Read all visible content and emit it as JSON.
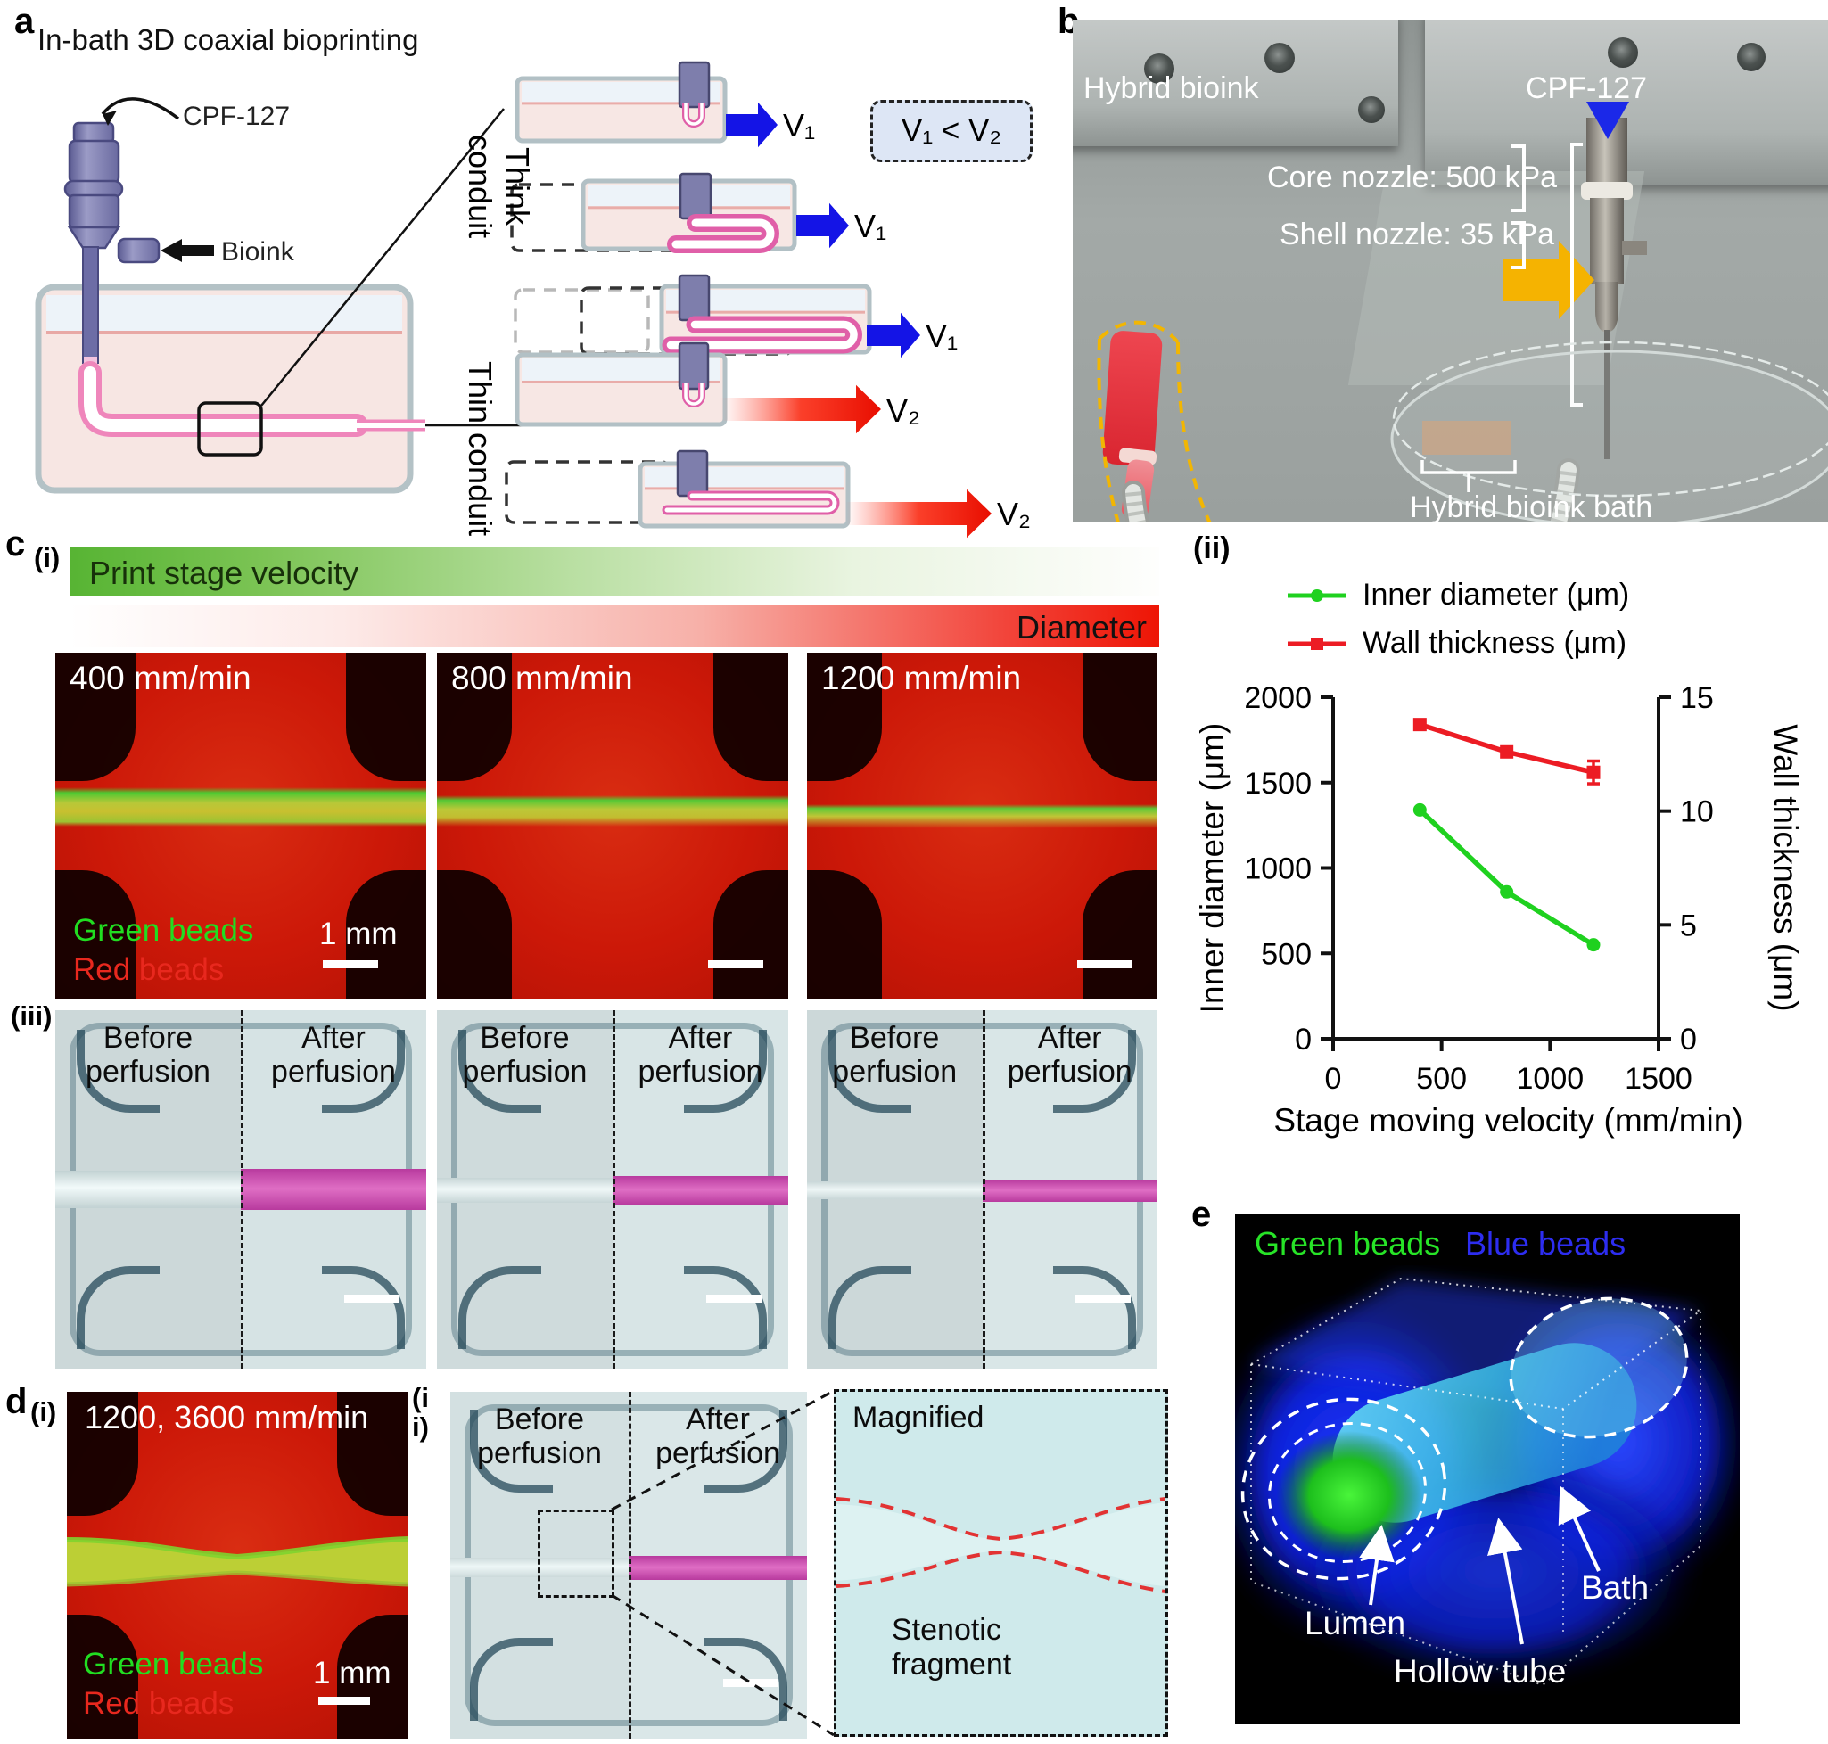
{
  "figure": {
    "a": {
      "label": "a",
      "title": "In-bath 3D coaxial bioprinting",
      "cpf": "CPF-127",
      "bioink": "Bioink",
      "thick_conduit": "Think conduit",
      "thin_conduit": "Thin conduit",
      "v1": "V₁",
      "v2": "V₂",
      "note": "V₁ < V₂"
    },
    "b": {
      "label": "b",
      "hybrid": "Hybrid bioink",
      "cpf": "CPF-127",
      "core": "Core nozzle: 500 kPa",
      "shell": "Shell nozzle: 35 kPa",
      "bath": "Hybrid bioink bath"
    },
    "c": {
      "label": "c",
      "i": "(i)",
      "ii": "(ii)",
      "iii": "(iii)",
      "velocity_bar": "Print stage velocity",
      "diameter_bar": "Diameter",
      "speeds": [
        "400 mm/min",
        "800 mm/min",
        "1200 mm/min"
      ],
      "green": "Green beads",
      "red": "Red beads",
      "scale": "1 mm",
      "before": "Before perfusion",
      "after": "After perfusion"
    },
    "d": {
      "label": "d",
      "i": "(i)",
      "ii": "(ii)",
      "speed": "1200, 3600 mm/min",
      "green": "Green beads",
      "red": "Red beads",
      "scale": "1 mm",
      "before": "Before perfusion",
      "after": "After perfusion",
      "magnified": "Magnified",
      "stenotic": "Stenotic fragment"
    },
    "e": {
      "label": "e",
      "green": "Green beads",
      "blue": "Blue beads",
      "lumen": "Lumen",
      "hollow": "Hollow tube",
      "bath": "Bath"
    }
  },
  "chart_data": {
    "type": "line",
    "x": [
      400,
      800,
      1200
    ],
    "series": [
      {
        "name": "Inner diameter (μm)",
        "axis": "left",
        "color": "#1fd11f",
        "marker": "circle",
        "values": [
          1340,
          860,
          550
        ],
        "errors": [
          0,
          0,
          0
        ]
      },
      {
        "name": "Wall thickness (μm)",
        "axis": "right",
        "color": "#ec1c24",
        "marker": "square",
        "values": [
          13.8,
          12.6,
          11.7
        ],
        "errors": [
          0.15,
          0.2,
          0.5
        ]
      }
    ],
    "xlabel": "Stage moving velocity (mm/min)",
    "xlim": [
      0,
      1500
    ],
    "x_ticks": [
      0,
      500,
      1000,
      1500
    ],
    "left_axis": {
      "label": "Inner diameter (μm)",
      "lim": [
        0,
        2000
      ],
      "ticks": [
        0,
        500,
        1000,
        1500,
        2000
      ]
    },
    "right_axis": {
      "label": "Wall thickness (μm)",
      "lim": [
        0,
        15
      ],
      "ticks": [
        0,
        5,
        10,
        15
      ]
    },
    "legend_position": "top",
    "grid": false
  }
}
